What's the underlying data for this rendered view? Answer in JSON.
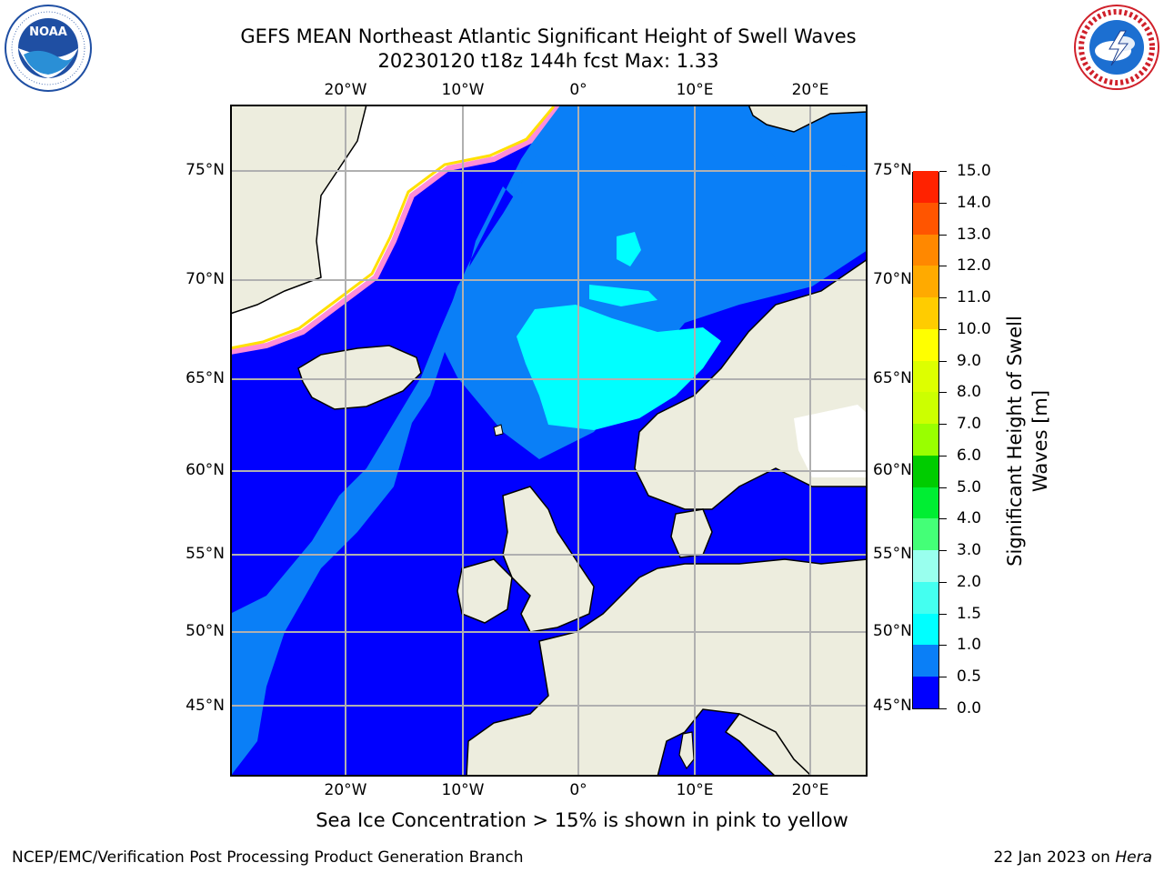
{
  "title": {
    "line1": "GEFS MEAN Northeast Atlantic Significant Height of Swell Waves",
    "line2": "20230120 t18z 144h fcst   Max: 1.33"
  },
  "logos": {
    "left": {
      "name": "NOAA",
      "ring_text": "NATIONAL OCEANIC AND ATMOSPHERIC ADMINISTRATION · U.S. DEPARTMENT OF COMMERCE",
      "color": "#1f4fa3"
    },
    "right": {
      "name": "National Weather Service",
      "ring_text": "NATIONAL WEATHER SERVICE",
      "color": "#d0202a"
    }
  },
  "map": {
    "projection": "Mercator",
    "lon_range": [
      -30,
      25
    ],
    "lat_range": [
      41,
      78
    ],
    "lon_ticks": [
      {
        "lon": -20,
        "label": "20°W"
      },
      {
        "lon": -10,
        "label": "10°W"
      },
      {
        "lon": 0,
        "label": "0°"
      },
      {
        "lon": 10,
        "label": "10°E"
      },
      {
        "lon": 20,
        "label": "20°E"
      }
    ],
    "lat_ticks": [
      {
        "lat": 75,
        "label": "75°N"
      },
      {
        "lat": 70,
        "label": "70°N"
      },
      {
        "lat": 65,
        "label": "65°N"
      },
      {
        "lat": 60,
        "label": "60°N"
      },
      {
        "lat": 55,
        "label": "55°N"
      },
      {
        "lat": 50,
        "label": "50°N"
      },
      {
        "lat": 45,
        "label": "45°N"
      }
    ],
    "grid": true,
    "colors": {
      "land": "#ededde",
      "ice": "#ffffff",
      "coast": "#000000",
      "grid": "#b0b0b0"
    }
  },
  "colorbar": {
    "title": "Significant Height of Swell Waves [m]",
    "levels": [
      {
        "label": "0.0",
        "color": "#0000ff"
      },
      {
        "label": "0.5",
        "color": "#0a7ff7"
      },
      {
        "label": "1.0",
        "color": "#00ffff"
      },
      {
        "label": "1.5",
        "color": "#44fff0"
      },
      {
        "label": "2.0",
        "color": "#99ffee"
      },
      {
        "label": "3.0",
        "color": "#44ff77"
      },
      {
        "label": "4.0",
        "color": "#00ee33"
      },
      {
        "label": "5.0",
        "color": "#00cc00"
      },
      {
        "label": "6.0",
        "color": "#99ff00"
      },
      {
        "label": "7.0",
        "color": "#ccff00"
      },
      {
        "label": "8.0",
        "color": "#ddff00"
      },
      {
        "label": "9.0",
        "color": "#ffff00"
      },
      {
        "label": "10.0",
        "color": "#ffcc00"
      },
      {
        "label": "11.0",
        "color": "#ffaa00"
      },
      {
        "label": "12.0",
        "color": "#ff8800"
      },
      {
        "label": "13.0",
        "color": "#ff5500"
      },
      {
        "label": "14.0",
        "color": "#ff2200"
      },
      {
        "label": "15.0",
        "color": "#ff0000"
      }
    ]
  },
  "note": "Sea Ice Concentration > 15% is shown in pink to yellow",
  "footer": {
    "left": "NCEP/EMC/Verification Post Processing Product Generation Branch",
    "date": "22 Jan 2023 on ",
    "machine": "Hera"
  }
}
